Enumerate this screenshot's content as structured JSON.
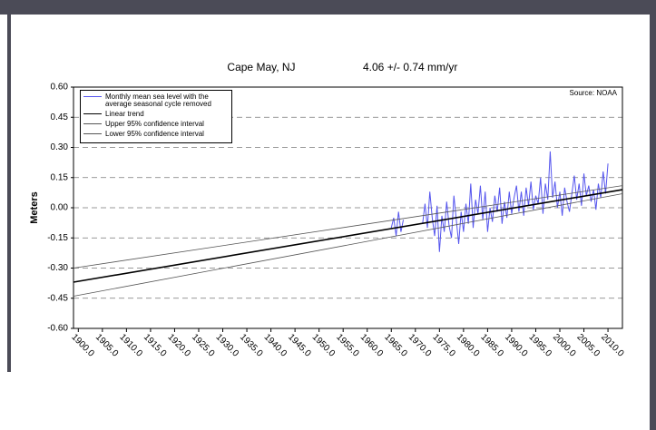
{
  "chart_data": {
    "type": "line",
    "title": "Cape May, NJ",
    "subtitle": "4.06 +/- 0.74 mm/yr",
    "y_label": "Meters",
    "annotation": "Source: NOAA",
    "xlim": [
      1899,
      2013
    ],
    "ylim": [
      -0.6,
      0.6
    ],
    "grid": true,
    "legend": "upper left",
    "xticks": [
      {
        "value": 1900,
        "label": "1900.0"
      },
      {
        "value": 1905,
        "label": "1905.0"
      },
      {
        "value": 1910,
        "label": "1910.0"
      },
      {
        "value": 1915,
        "label": "1915.0"
      },
      {
        "value": 1920,
        "label": "1920.0"
      },
      {
        "value": 1925,
        "label": "1925.0"
      },
      {
        "value": 1930,
        "label": "1930.0"
      },
      {
        "value": 1935,
        "label": "1935.0"
      },
      {
        "value": 1940,
        "label": "1940.0"
      },
      {
        "value": 1945,
        "label": "1945.0"
      },
      {
        "value": 1950,
        "label": "1950.0"
      },
      {
        "value": 1955,
        "label": "1955.0"
      },
      {
        "value": 1960,
        "label": "1960.0"
      },
      {
        "value": 1965,
        "label": "1965.0"
      },
      {
        "value": 1970,
        "label": "1970.0"
      },
      {
        "value": 1975,
        "label": "1975.0"
      },
      {
        "value": 1980,
        "label": "1980.0"
      },
      {
        "value": 1985,
        "label": "1985.0"
      },
      {
        "value": 1990,
        "label": "1990.0"
      },
      {
        "value": 1995,
        "label": "1995.0"
      },
      {
        "value": 2000,
        "label": "2000.0"
      },
      {
        "value": 2005,
        "label": "2005.0"
      },
      {
        "value": 2010,
        "label": "2010.0"
      }
    ],
    "yticks": [
      {
        "value": 0.6,
        "label": "0.60"
      },
      {
        "value": 0.45,
        "label": "0.45"
      },
      {
        "value": 0.3,
        "label": "0.30"
      },
      {
        "value": 0.15,
        "label": "0.15"
      },
      {
        "value": 0,
        "label": "0.00"
      },
      {
        "value": -0.15,
        "label": "-0.15"
      },
      {
        "value": -0.3,
        "label": "-0.30"
      },
      {
        "value": -0.45,
        "label": "-0.45"
      },
      {
        "value": -0.6,
        "label": "-0.60"
      }
    ],
    "series": [
      {
        "name": "Monthly mean sea level with the average seasonal cycle removed",
        "color": "#5555ee",
        "width": 1,
        "x": [
          1965.0,
          1965.5,
          1966.0,
          1966.5,
          1967.0,
          1967.5,
          1969.5,
          1971.5,
          1972.0,
          1972.5,
          1973.0,
          1973.5,
          1974.0,
          1974.5,
          1975.0,
          1975.5,
          1976.0,
          1976.5,
          1977.0,
          1977.5,
          1978.0,
          1978.5,
          1979.0,
          1979.5,
          1980.0,
          1980.5,
          1981.0,
          1981.5,
          1982.0,
          1982.5,
          1983.0,
          1983.5,
          1984.0,
          1984.5,
          1985.0,
          1985.5,
          1986.0,
          1986.5,
          1987.0,
          1987.5,
          1988.0,
          1988.5,
          1989.0,
          1989.5,
          1990.0,
          1990.5,
          1991.0,
          1991.5,
          1992.0,
          1992.5,
          1993.0,
          1993.5,
          1994.0,
          1994.5,
          1995.0,
          1995.5,
          1996.0,
          1996.5,
          1997.0,
          1997.5,
          1998.0,
          1998.5,
          1999.0,
          1999.5,
          2000.0,
          2000.5,
          2001.0,
          2001.5,
          2002.0,
          2002.5,
          2003.0,
          2003.5,
          2004.0,
          2004.5,
          2005.0,
          2005.5,
          2006.0,
          2006.5,
          2007.0,
          2007.5,
          2008.0,
          2008.5,
          2009.0,
          2009.5,
          2010.0
        ],
        "values": [
          -0.1,
          -0.05,
          -0.14,
          -0.02,
          -0.12,
          -0.06,
          null,
          -0.08,
          0.02,
          -0.1,
          0.08,
          -0.05,
          -0.14,
          0.01,
          -0.22,
          -0.04,
          -0.12,
          0.03,
          -0.09,
          -0.15,
          0.06,
          -0.06,
          -0.18,
          -0.02,
          -0.12,
          0.02,
          -0.08,
          0.12,
          -0.1,
          0.04,
          -0.03,
          0.11,
          -0.06,
          0.08,
          -0.12,
          0.0,
          -0.07,
          0.06,
          -0.02,
          0.1,
          -0.08,
          0.03,
          -0.05,
          0.08,
          -0.03,
          0.05,
          0.11,
          -0.02,
          0.08,
          -0.04,
          0.1,
          0.01,
          0.13,
          -0.01,
          0.06,
          0.02,
          0.15,
          -0.03,
          0.12,
          0.04,
          0.28,
          0.05,
          0.13,
          0.0,
          0.08,
          -0.04,
          0.1,
          0.03,
          -0.02,
          0.07,
          0.16,
          0.04,
          0.12,
          0.01,
          0.17,
          0.06,
          0.11,
          0.03,
          0.09,
          -0.01,
          0.12,
          0.05,
          0.18,
          0.07,
          0.22
        ]
      },
      {
        "name": "Linear trend",
        "color": "#000000",
        "width": 1.6,
        "x": [
          1899,
          2013
        ],
        "values": [
          -0.37,
          0.09
        ]
      },
      {
        "name": "Upper 95% confidence interval",
        "color": "#555555",
        "width": 0.8,
        "x": [
          1899,
          2013
        ],
        "values": [
          -0.3,
          0.11
        ]
      },
      {
        "name": "Lower 95% confidence interval",
        "color": "#555555",
        "width": 0.8,
        "x": [
          1899,
          2013
        ],
        "values": [
          -0.44,
          0.07
        ]
      }
    ]
  }
}
